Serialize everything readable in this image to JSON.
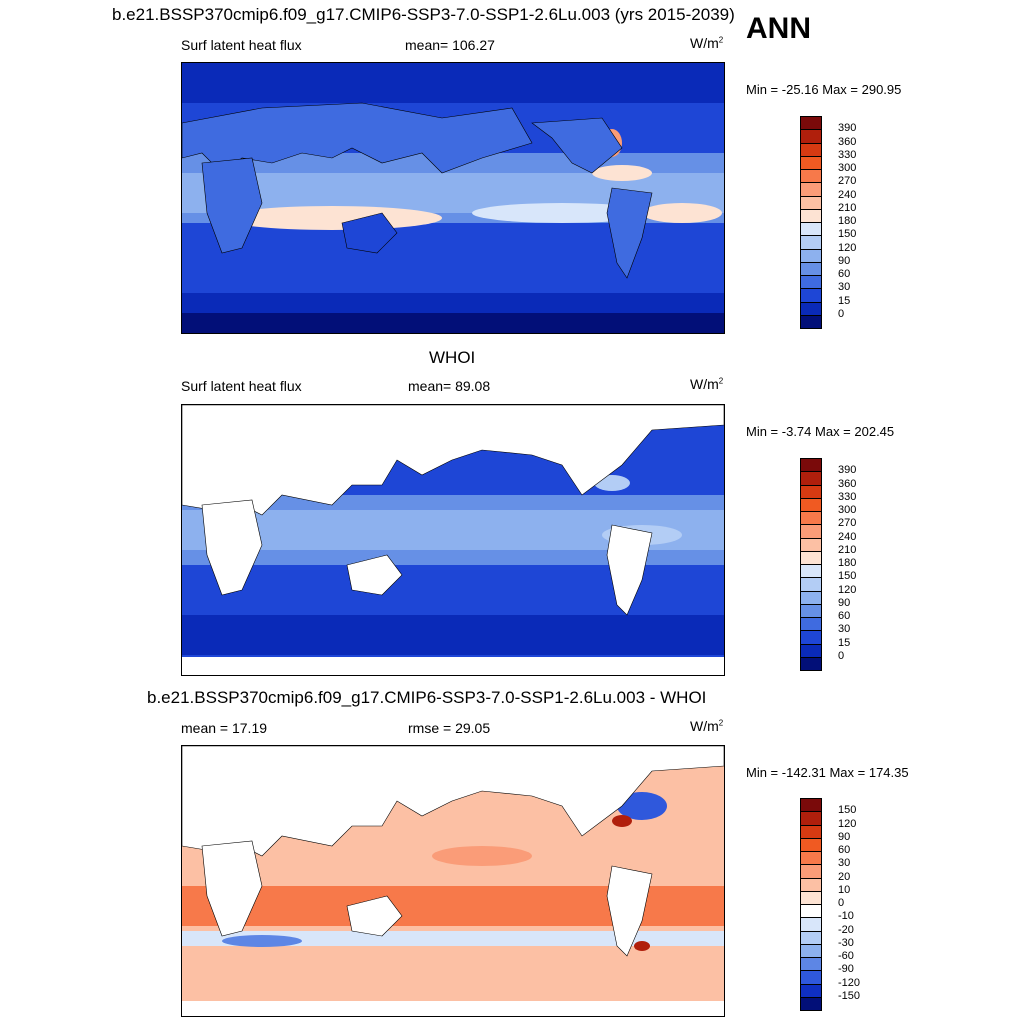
{
  "header": {
    "case_title": "b.e21.BSSP370cmip6.f09_g17.CMIP6-SSP3-7.0-SSP1-2.6Lu.003 (yrs 2015-2039)",
    "season": "ANN"
  },
  "panels": [
    {
      "name": "model",
      "title": "",
      "left_label": "Surf latent heat flux",
      "center_label": "mean= 106.27",
      "units": "W/m",
      "units_sup": "2",
      "minmax": "Min = -25.16 Max = 290.95",
      "colorbar_levels": [
        "390",
        "360",
        "330",
        "300",
        "270",
        "240",
        "210",
        "180",
        "150",
        "120",
        "90",
        "60",
        "30",
        "15",
        "0"
      ]
    },
    {
      "name": "obs",
      "title": "WHOI",
      "left_label": "Surf latent heat flux",
      "center_label": "mean=  89.08",
      "units": "W/m",
      "units_sup": "2",
      "minmax": "Min =  -3.74 Max = 202.45",
      "colorbar_levels": [
        "390",
        "360",
        "330",
        "300",
        "270",
        "240",
        "210",
        "180",
        "150",
        "120",
        "90",
        "60",
        "30",
        "15",
        "0"
      ]
    },
    {
      "name": "diff",
      "title": "b.e21.BSSP370cmip6.f09_g17.CMIP6-SSP3-7.0-SSP1-2.6Lu.003 - WHOI",
      "left_label": "mean =  17.19",
      "center_label": "rmse =  29.05",
      "units": "W/m",
      "units_sup": "2",
      "minmax": "Min = -142.31 Max = 174.35",
      "colorbar_levels": [
        "150",
        "120",
        "90",
        "60",
        "30",
        "20",
        "10",
        "0",
        "-10",
        "-20",
        "-30",
        "-60",
        "-90",
        "-120",
        "-150"
      ]
    }
  ],
  "colors": {
    "abs_scale": [
      "#7a0a0a",
      "#b01f0c",
      "#d63a12",
      "#f05a22",
      "#f7794a",
      "#fa9c78",
      "#fcc0a4",
      "#fde3d3",
      "#d8e6fa",
      "#b3cdf5",
      "#8db1ee",
      "#6690e6",
      "#3f6be0",
      "#1e46d6",
      "#0a2ab8",
      "#020f78"
    ],
    "diff_scale": [
      "#7a0a0a",
      "#b01f0c",
      "#d63a12",
      "#f05a22",
      "#f7794a",
      "#fa9c78",
      "#fcc0a4",
      "#fde3d3",
      "#ffffff",
      "#d8e6fa",
      "#b3cdf5",
      "#8db1ee",
      "#5d86e5",
      "#2f58dc",
      "#0f2fc2",
      "#020f78"
    ]
  }
}
